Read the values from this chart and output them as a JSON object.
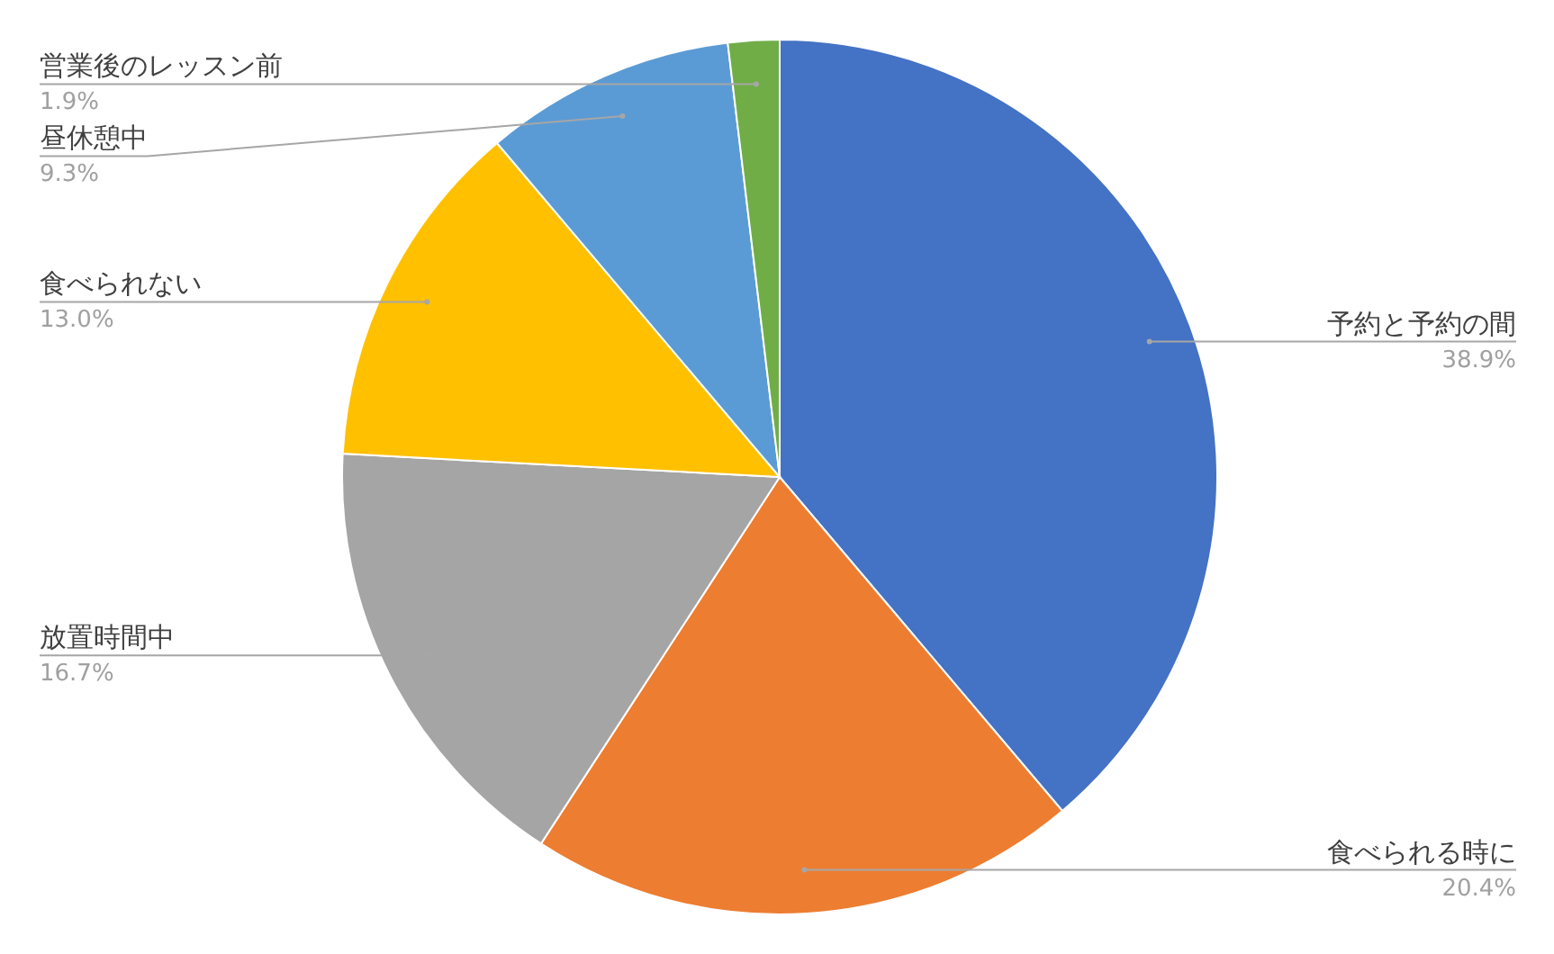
{
  "chart_data": {
    "type": "pie",
    "categories": [
      "予約と予約の間",
      "食べられる時に",
      "放置時間中",
      "食べられない",
      "昼休憩中",
      "営業後のレッスン前"
    ],
    "values": [
      38.9,
      20.4,
      16.7,
      13.0,
      9.3,
      1.9
    ],
    "colors": [
      "#4472c4",
      "#ed7d31",
      "#a5a5a5",
      "#ffc000",
      "#5b9bd5",
      "#70ad47"
    ],
    "value_labels": [
      "38.9%",
      "20.4%",
      "16.7%",
      "13.0%",
      "9.3%",
      "1.9%"
    ],
    "legend": false
  }
}
